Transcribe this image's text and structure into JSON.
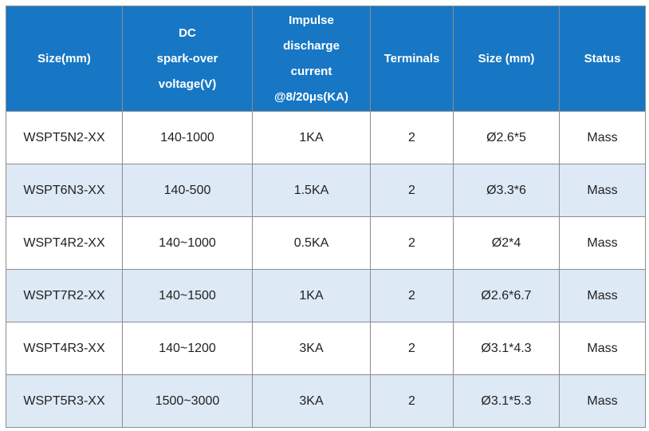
{
  "table": {
    "headers": [
      {
        "lines": [
          "Size(mm)"
        ]
      },
      {
        "lines": [
          "DC",
          "spark-over",
          "voltage(V)"
        ]
      },
      {
        "lines": [
          "Impulse",
          "discharge",
          "current",
          "@8/20μs(KA)"
        ]
      },
      {
        "lines": [
          "Terminals"
        ]
      },
      {
        "lines": [
          "Size (mm)"
        ]
      },
      {
        "lines": [
          "Status"
        ]
      }
    ],
    "rows": [
      [
        "WSPT5N2-XX",
        "140-1000",
        "1KA",
        "2",
        "Ø2.6*5",
        "Mass"
      ],
      [
        "WSPT6N3-XX",
        "140-500",
        "1.5KA",
        "2",
        "Ø3.3*6",
        "Mass"
      ],
      [
        "WSPT4R2-XX",
        "140~1000",
        "0.5KA",
        "2",
        "Ø2*4",
        "Mass"
      ],
      [
        "WSPT7R2-XX",
        "140~1500",
        "1KA",
        "2",
        "Ø2.6*6.7",
        "Mass"
      ],
      [
        "WSPT4R3-XX",
        "140~1200",
        "3KA",
        "2",
        "Ø3.1*4.3",
        "Mass"
      ],
      [
        "WSPT5R3-XX",
        "1500~3000",
        "3KA",
        "2",
        "Ø3.1*5.3",
        "Mass"
      ]
    ]
  },
  "colors": {
    "header_bg": "#1777c4",
    "header_text": "#ffffff",
    "stripe_bg": "#dde9f5",
    "border": "#8c8c8c"
  }
}
